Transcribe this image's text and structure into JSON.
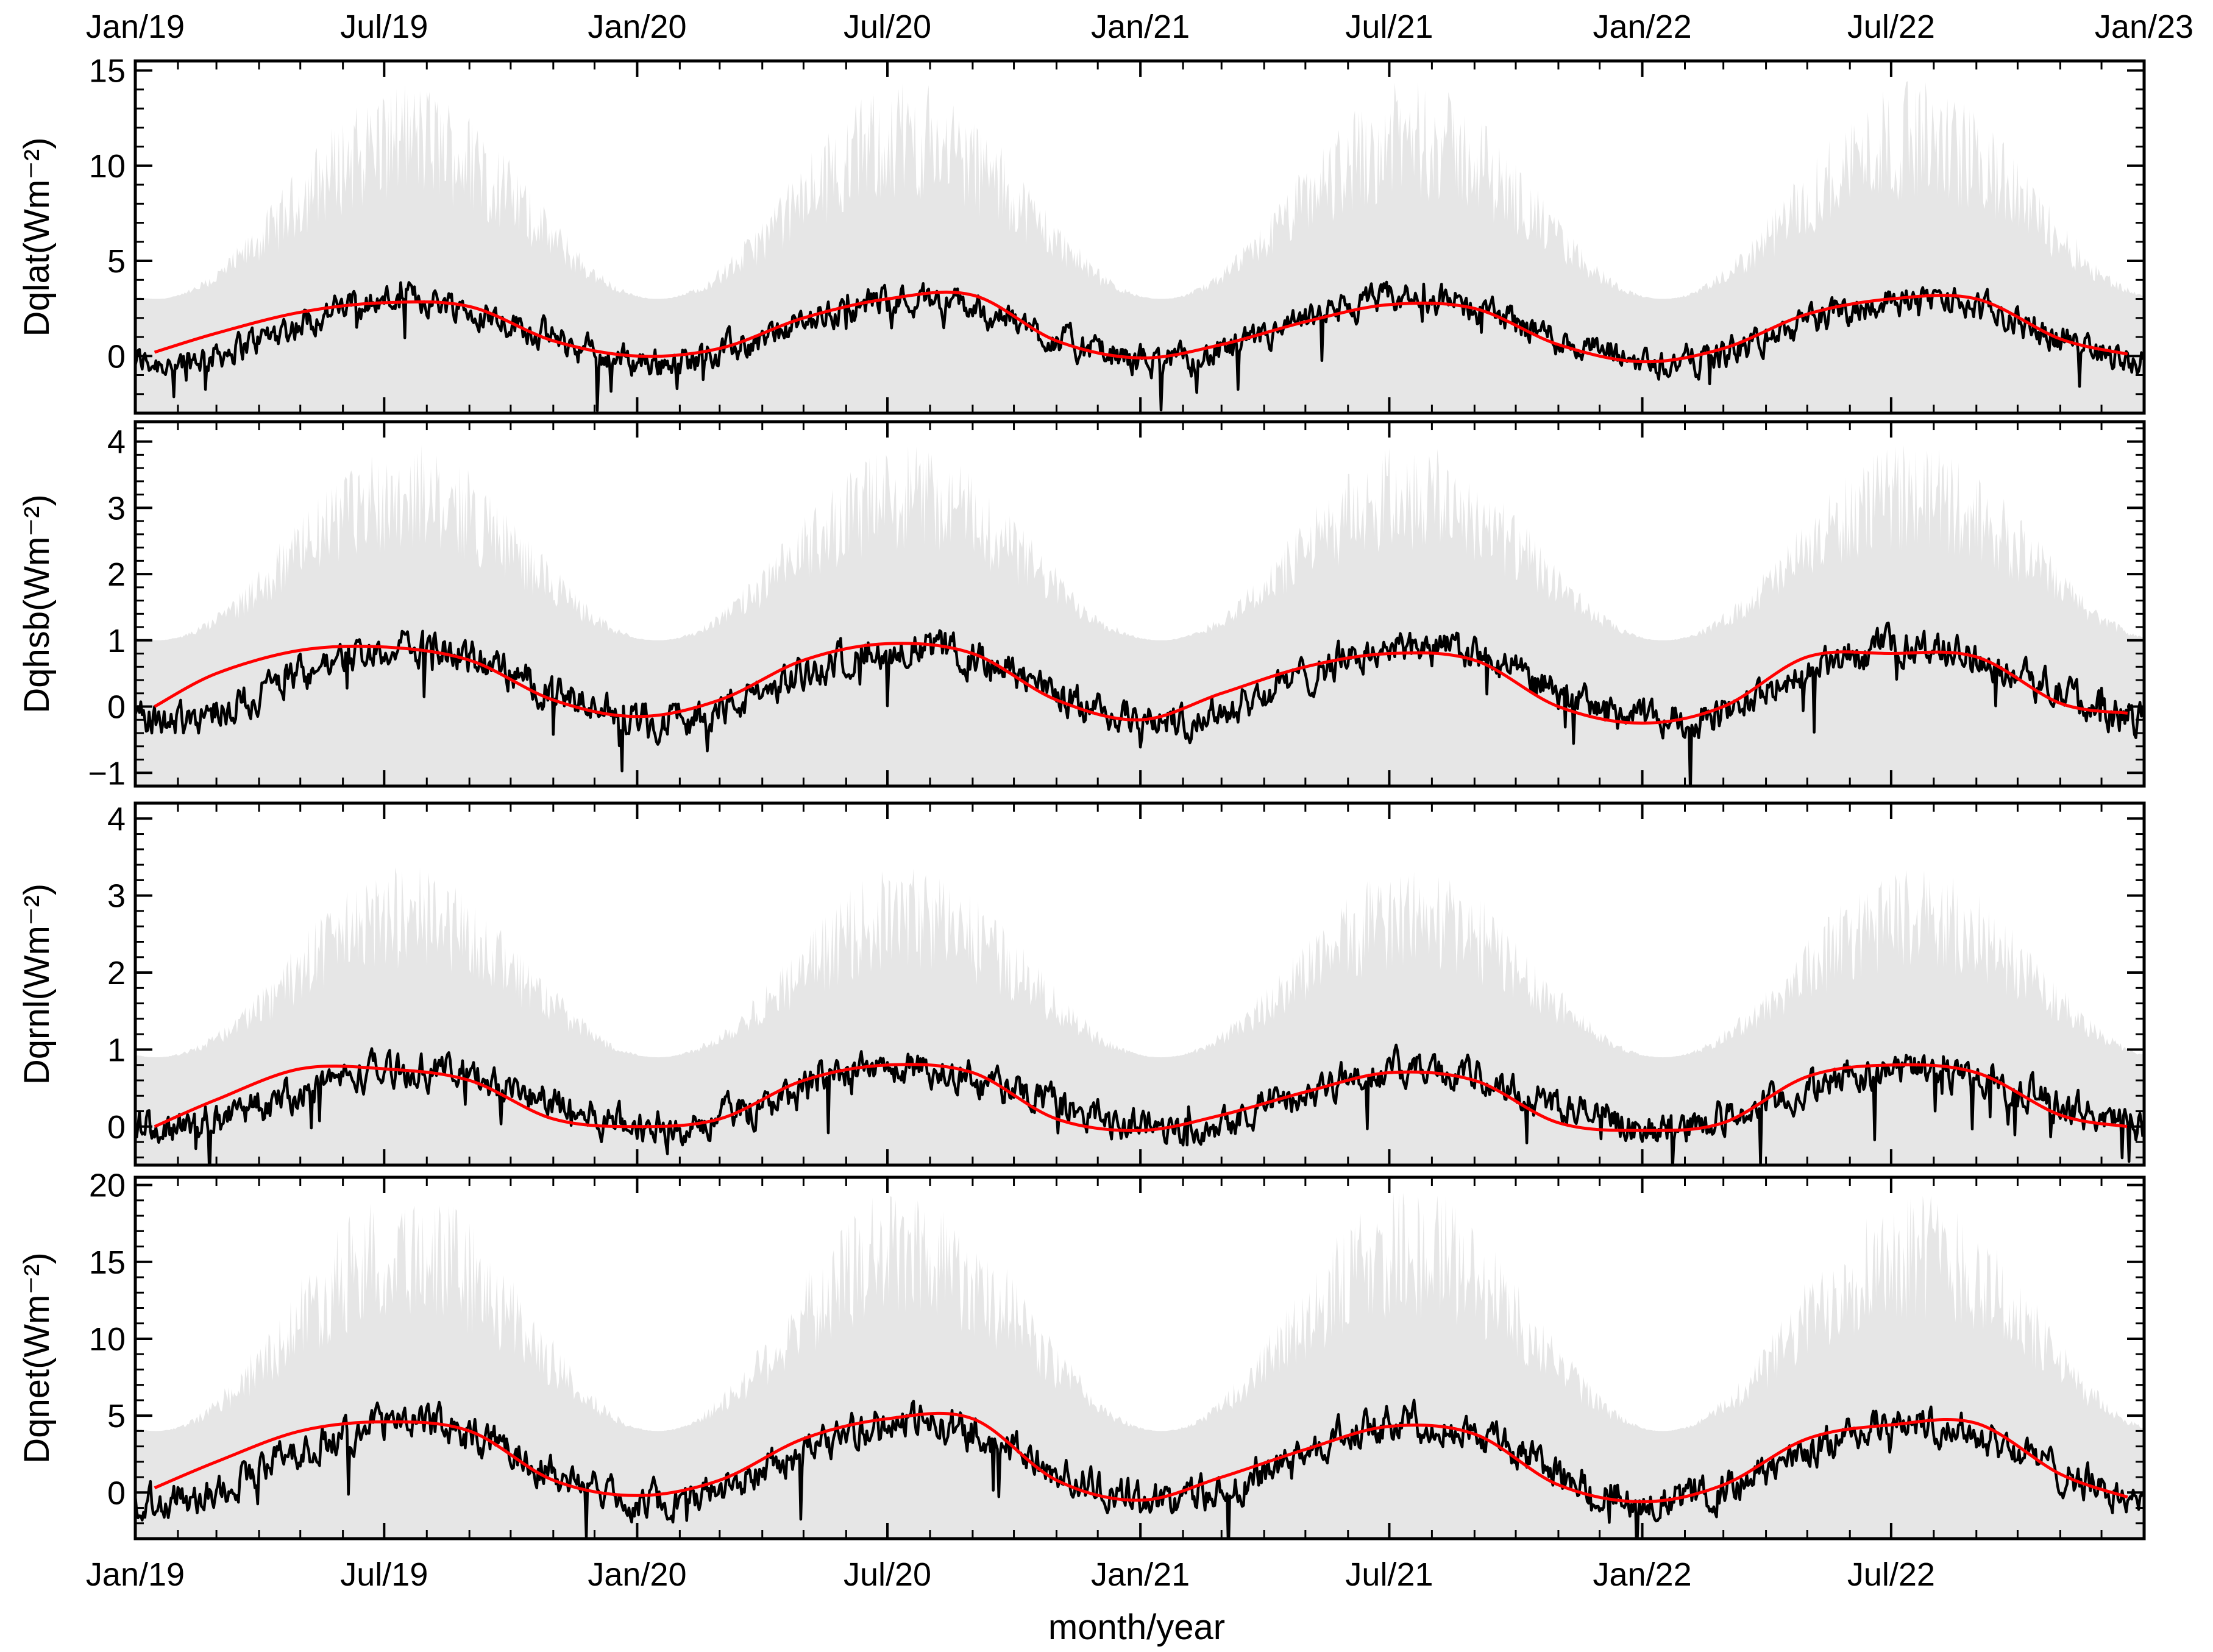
{
  "chart_data": {
    "type": "line",
    "xlabel": "month/year",
    "x_range": [
      "2019-01-01",
      "2023-01-01"
    ],
    "top_axis_ticks": [
      "Jan/19",
      "Jul/19",
      "Jan/20",
      "Jul/20",
      "Jan/21",
      "Jul/21",
      "Jan/22",
      "Jul/22",
      "Jan/23"
    ],
    "bottom_axis_ticks": [
      "Jan/19",
      "Jul/19",
      "Jan/20",
      "Jul/20",
      "Jan/21",
      "Jul/21",
      "Jan/22",
      "Jul/22"
    ],
    "colors": {
      "envelope": "#e6e6e6",
      "daily": "#000000",
      "smoothed": "#ff0000"
    },
    "panels": [
      {
        "ylabel": "Dqlat(Wm⁻²)",
        "ylim": [
          -3,
          15.5
        ],
        "yticks": [
          "0",
          "5",
          "10",
          "15"
        ],
        "ytick_values": [
          0,
          5,
          10,
          15
        ],
        "seasonal": {
          "winter": -0.3,
          "summer": 3.0,
          "noise": 0.9
        },
        "envelope": {
          "winter_max": 3.0,
          "summer_max": 14.5,
          "min": -3
        },
        "series": [
          {
            "name": "",
            "color": "#ff0000",
            "x": [
              "2019-01-15",
              "2019-03-01",
              "2019-05-01",
              "2019-07-01",
              "2019-09-01",
              "2019-11-01",
              "2020-01-01",
              "2020-03-01",
              "2020-05-01",
              "2020-07-01",
              "2020-09-01",
              "2020-11-01",
              "2021-01-01",
              "2021-03-01",
              "2021-05-01",
              "2021-07-01",
              "2021-09-01",
              "2021-11-01",
              "2022-01-01",
              "2022-03-01",
              "2022-05-01",
              "2022-07-01",
              "2022-09-01",
              "2022-11-01",
              "2022-12-20"
            ],
            "y": [
              0.2,
              1.2,
              2.3,
              2.8,
              2.6,
              0.8,
              0.0,
              0.4,
              2.0,
              3.0,
              3.2,
              0.8,
              -0.1,
              0.6,
              1.8,
              2.7,
              2.5,
              0.6,
              -0.3,
              0.4,
              2.2,
              3.0,
              3.0,
              0.9,
              0.1
            ]
          }
        ]
      },
      {
        "ylabel": "Dqhsb(Wm⁻²)",
        "ylim": [
          -1.2,
          4.3
        ],
        "yticks": [
          "−1",
          "0",
          "1",
          "2",
          "3",
          "4"
        ],
        "ytick_values": [
          -1,
          0,
          1,
          2,
          3,
          4
        ],
        "seasonal": {
          "winter": -0.2,
          "summer": 0.9,
          "noise": 0.3
        },
        "envelope": {
          "winter_max": 1.0,
          "summer_max": 4.0,
          "min": -1.2
        },
        "series": [
          {
            "name": "",
            "color": "#ff0000",
            "x": [
              "2019-01-15",
              "2019-03-01",
              "2019-05-01",
              "2019-07-01",
              "2019-09-01",
              "2019-11-01",
              "2020-01-01",
              "2020-03-01",
              "2020-05-01",
              "2020-07-01",
              "2020-09-01",
              "2020-11-01",
              "2021-01-01",
              "2021-03-01",
              "2021-05-01",
              "2021-07-01",
              "2021-09-01",
              "2021-11-01",
              "2022-01-01",
              "2022-03-01",
              "2022-05-01",
              "2022-07-01",
              "2022-09-01",
              "2022-11-01",
              "2022-12-20"
            ],
            "y": [
              0.0,
              0.5,
              0.85,
              0.9,
              0.7,
              0.1,
              -0.15,
              0.1,
              0.7,
              0.95,
              0.8,
              0.1,
              -0.2,
              0.2,
              0.6,
              0.8,
              0.7,
              0.0,
              -0.25,
              0.0,
              0.75,
              0.8,
              0.75,
              0.05,
              -0.1
            ]
          }
        ]
      },
      {
        "ylabel": "Dqrnl(Wm⁻²)",
        "ylim": [
          -0.5,
          4.2
        ],
        "yticks": [
          "0",
          "1",
          "2",
          "3",
          "4"
        ],
        "ytick_values": [
          0,
          1,
          2,
          3,
          4
        ],
        "seasonal": {
          "winter": 0.0,
          "summer": 0.75,
          "noise": 0.25
        },
        "envelope": {
          "winter_max": 0.9,
          "summer_max": 3.4,
          "min": -0.5
        },
        "series": [
          {
            "name": "",
            "color": "#ff0000",
            "x": [
              "2019-01-15",
              "2019-03-01",
              "2019-05-01",
              "2019-07-01",
              "2019-09-01",
              "2019-11-01",
              "2020-01-01",
              "2020-03-01",
              "2020-05-01",
              "2020-07-01",
              "2020-09-01",
              "2020-11-01",
              "2021-01-01",
              "2021-03-01",
              "2021-05-01",
              "2021-07-01",
              "2021-09-01",
              "2021-11-01",
              "2022-01-01",
              "2022-03-01",
              "2022-05-01",
              "2022-07-01",
              "2022-09-01",
              "2022-11-01",
              "2022-12-20"
            ],
            "y": [
              0.0,
              0.35,
              0.75,
              0.75,
              0.6,
              0.1,
              0.0,
              0.1,
              0.6,
              0.8,
              0.7,
              0.1,
              -0.05,
              0.15,
              0.45,
              0.7,
              0.6,
              0.05,
              -0.05,
              0.05,
              0.65,
              0.8,
              0.7,
              0.15,
              0.0
            ]
          }
        ]
      },
      {
        "ylabel": "Dqnet(Wm⁻²)",
        "ylim": [
          -3,
          20.5
        ],
        "yticks": [
          "0",
          "5",
          "10",
          "15",
          "20"
        ],
        "ytick_values": [
          0,
          5,
          10,
          15,
          20
        ],
        "seasonal": {
          "winter": -0.5,
          "summer": 4.6,
          "noise": 1.3
        },
        "envelope": {
          "winter_max": 4.0,
          "summer_max": 20.0,
          "min": -3
        },
        "series": [
          {
            "name": "",
            "color": "#ff0000",
            "x": [
              "2019-01-15",
              "2019-03-01",
              "2019-05-01",
              "2019-07-01",
              "2019-09-01",
              "2019-11-01",
              "2020-01-01",
              "2020-03-01",
              "2020-05-01",
              "2020-07-01",
              "2020-09-01",
              "2020-11-01",
              "2021-01-01",
              "2021-03-01",
              "2021-05-01",
              "2021-07-01",
              "2021-09-01",
              "2021-11-01",
              "2022-01-01",
              "2022-03-01",
              "2022-05-01",
              "2022-07-01",
              "2022-09-01",
              "2022-11-01",
              "2022-12-20"
            ],
            "y": [
              0.3,
              2.0,
              4.0,
              4.6,
              4.0,
              0.8,
              -0.2,
              0.8,
              3.5,
              4.8,
              4.8,
              0.8,
              -0.5,
              1.0,
              2.8,
              4.3,
              3.8,
              0.5,
              -0.6,
              0.5,
              3.5,
              4.4,
              4.5,
              1.2,
              -0.3
            ]
          }
        ]
      }
    ]
  }
}
